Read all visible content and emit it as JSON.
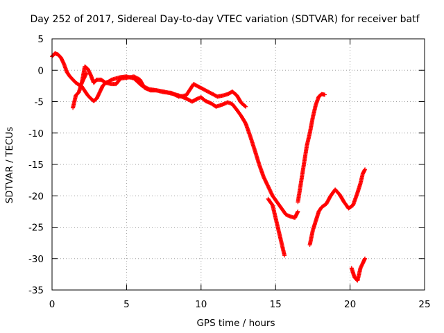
{
  "chart_data": {
    "type": "scatter",
    "title": "Day 252 of 2017, Sidereal Day-to-day VTEC variation (SDTVAR) for receiver batf",
    "xlabel": "GPS time / hours",
    "ylabel": "SDTVAR / TECUs",
    "xlim": [
      0,
      25
    ],
    "ylim": [
      -35,
      5
    ],
    "xticks": [
      0,
      5,
      10,
      15,
      20,
      25
    ],
    "yticks": [
      -35,
      -30,
      -25,
      -20,
      -15,
      -10,
      -5,
      0,
      5
    ],
    "grid": true,
    "marker": "+",
    "color": "#ff0000",
    "series": [
      {
        "description": "main trace 0-16.5 h",
        "points": [
          [
            0.0,
            2.2
          ],
          [
            0.2,
            2.7
          ],
          [
            0.4,
            2.5
          ],
          [
            0.6,
            2.0
          ],
          [
            0.8,
            1.0
          ],
          [
            1.0,
            -0.3
          ],
          [
            1.2,
            -1.0
          ],
          [
            1.4,
            -1.5
          ],
          [
            1.6,
            -2.0
          ],
          [
            1.8,
            -2.3
          ],
          [
            2.0,
            -2.6
          ],
          [
            2.2,
            -3.3
          ],
          [
            2.4,
            -4.0
          ],
          [
            2.6,
            -4.5
          ],
          [
            2.8,
            -4.9
          ],
          [
            3.0,
            -4.5
          ],
          [
            3.2,
            -3.5
          ],
          [
            3.4,
            -2.5
          ],
          [
            3.6,
            -2.0
          ],
          [
            3.8,
            -1.8
          ],
          [
            4.0,
            -1.5
          ],
          [
            4.3,
            -1.3
          ],
          [
            4.6,
            -1.1
          ],
          [
            5.0,
            -1.0
          ],
          [
            5.5,
            -1.3
          ],
          [
            6.0,
            -2.4
          ],
          [
            6.5,
            -3.0
          ],
          [
            7.0,
            -3.2
          ],
          [
            7.5,
            -3.4
          ],
          [
            8.0,
            -3.7
          ],
          [
            8.5,
            -4.0
          ],
          [
            9.0,
            -4.5
          ],
          [
            9.4,
            -5.0
          ],
          [
            9.7,
            -4.6
          ],
          [
            10.0,
            -4.3
          ],
          [
            10.3,
            -4.9
          ],
          [
            10.7,
            -5.3
          ],
          [
            11.0,
            -5.8
          ],
          [
            11.4,
            -5.5
          ],
          [
            11.8,
            -5.1
          ],
          [
            12.1,
            -5.4
          ],
          [
            12.4,
            -6.3
          ],
          [
            12.7,
            -7.3
          ],
          [
            13.0,
            -8.5
          ],
          [
            13.3,
            -10.5
          ],
          [
            13.6,
            -12.7
          ],
          [
            13.9,
            -15.0
          ],
          [
            14.2,
            -17.0
          ],
          [
            14.5,
            -18.5
          ],
          [
            14.8,
            -20.0
          ],
          [
            15.1,
            -21.0
          ],
          [
            15.4,
            -22.0
          ],
          [
            15.7,
            -23.0
          ],
          [
            16.0,
            -23.3
          ],
          [
            16.3,
            -23.5
          ],
          [
            16.5,
            -22.5
          ]
        ]
      },
      {
        "description": "offset trace 2-13 h",
        "points": [
          [
            2.0,
            -2.0
          ],
          [
            2.2,
            0.6
          ],
          [
            2.4,
            0.2
          ],
          [
            2.6,
            -0.8
          ],
          [
            2.8,
            -2.0
          ],
          [
            3.0,
            -1.5
          ],
          [
            3.3,
            -1.5
          ],
          [
            3.6,
            -2.0
          ],
          [
            4.0,
            -2.2
          ],
          [
            4.3,
            -2.2
          ],
          [
            4.6,
            -1.3
          ],
          [
            5.0,
            -1.2
          ],
          [
            5.5,
            -1.0
          ],
          [
            5.9,
            -1.5
          ],
          [
            6.2,
            -2.8
          ],
          [
            6.6,
            -3.2
          ],
          [
            7.0,
            -3.2
          ],
          [
            7.5,
            -3.5
          ],
          [
            8.0,
            -3.6
          ],
          [
            8.5,
            -4.2
          ],
          [
            9.0,
            -4.0
          ],
          [
            9.5,
            -2.2
          ],
          [
            9.9,
            -2.7
          ],
          [
            10.3,
            -3.2
          ],
          [
            10.7,
            -3.7
          ],
          [
            11.1,
            -4.2
          ],
          [
            11.5,
            -4.0
          ],
          [
            11.8,
            -3.8
          ],
          [
            12.1,
            -3.4
          ],
          [
            12.4,
            -4.0
          ],
          [
            12.7,
            -5.2
          ],
          [
            13.0,
            -5.8
          ]
        ]
      },
      {
        "description": "early dip branch 1.4-2.3 h",
        "points": [
          [
            1.4,
            -6.0
          ],
          [
            1.5,
            -5.0
          ],
          [
            1.6,
            -4.0
          ],
          [
            1.8,
            -3.5
          ],
          [
            2.0,
            -2.0
          ],
          [
            2.2,
            -1.0
          ],
          [
            2.3,
            -0.5
          ]
        ]
      },
      {
        "description": "steep dip branch 14.5-15.6 h",
        "points": [
          [
            14.5,
            -20.5
          ],
          [
            14.8,
            -21.5
          ],
          [
            15.0,
            -23.5
          ],
          [
            15.2,
            -25.5
          ],
          [
            15.4,
            -27.5
          ],
          [
            15.6,
            -29.5
          ]
        ]
      },
      {
        "description": "recovery branch 16.5-18.3 h",
        "points": [
          [
            16.5,
            -21.0
          ],
          [
            16.7,
            -18.0
          ],
          [
            16.9,
            -15.0
          ],
          [
            17.1,
            -12.0
          ],
          [
            17.3,
            -10.0
          ],
          [
            17.5,
            -7.5
          ],
          [
            17.7,
            -5.5
          ],
          [
            17.9,
            -4.2
          ],
          [
            18.1,
            -3.8
          ],
          [
            18.3,
            -3.9
          ]
        ]
      },
      {
        "description": "late trace 17.3-21 h",
        "points": [
          [
            17.3,
            -27.8
          ],
          [
            17.5,
            -25.5
          ],
          [
            17.7,
            -24.0
          ],
          [
            17.9,
            -22.5
          ],
          [
            18.1,
            -21.8
          ],
          [
            18.4,
            -21.3
          ],
          [
            18.7,
            -20.0
          ],
          [
            19.0,
            -19.0
          ],
          [
            19.3,
            -19.8
          ],
          [
            19.6,
            -21.0
          ],
          [
            19.9,
            -22.0
          ],
          [
            20.2,
            -21.5
          ],
          [
            20.5,
            -19.5
          ],
          [
            20.7,
            -18.0
          ],
          [
            20.85,
            -16.5
          ],
          [
            21.0,
            -15.8
          ]
        ]
      },
      {
        "description": "late low segment 20-21 h",
        "points": [
          [
            20.1,
            -31.5
          ],
          [
            20.3,
            -33.0
          ],
          [
            20.5,
            -33.5
          ],
          [
            20.7,
            -31.5
          ],
          [
            20.9,
            -30.5
          ],
          [
            21.0,
            -30.0
          ]
        ]
      }
    ]
  }
}
